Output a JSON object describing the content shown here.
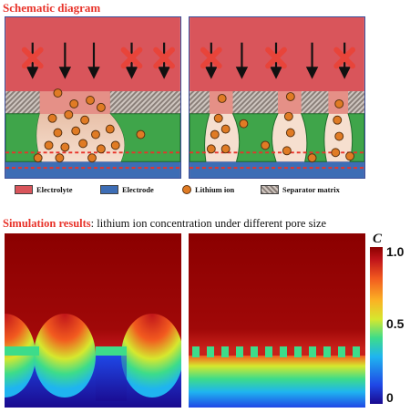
{
  "schematic": {
    "title": "Schematic diagram"
  },
  "legend": [
    {
      "label": "Electrolyte",
      "color": "#d9555b",
      "kind": "swatch"
    },
    {
      "label": "Electrode",
      "color": "#3d6db5",
      "kind": "swatch"
    },
    {
      "label": "Lithium ion",
      "color": "#e07b24",
      "kind": "dot"
    },
    {
      "label": "Separator matrix",
      "color": "#a89c95",
      "kind": "pattern"
    }
  ],
  "simulation": {
    "title_main": "Simulation results",
    "title_sub": ": lithium ion concentration under different pore size",
    "colorbar": {
      "variable": "C",
      "ticks": [
        "1.0",
        "0.5",
        "0"
      ],
      "range": [
        0,
        1.0
      ]
    }
  },
  "colors": {
    "electrolyte": "#d9555b",
    "electrode": "#3d6db5",
    "separator_green": "#3fa54a",
    "ion": "#e07b24",
    "cross": "#e8443a",
    "title_red": "#e8332a"
  }
}
